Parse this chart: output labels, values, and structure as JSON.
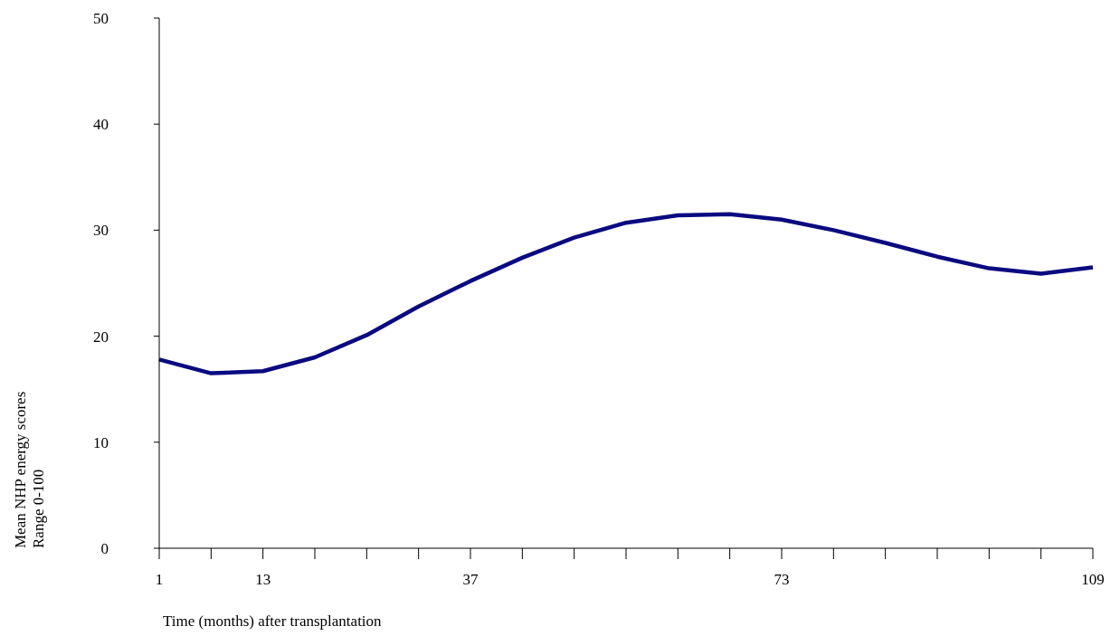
{
  "chart_data": {
    "type": "line",
    "xlabel": "Time (months) after transplantation",
    "ylabel": "Mean NHP energy scores\nRange 0-100",
    "x": [
      1,
      7,
      13,
      19,
      25,
      31,
      37,
      43,
      49,
      55,
      61,
      67,
      73,
      79,
      85,
      91,
      97,
      103,
      109
    ],
    "series": [
      {
        "color": "#0a0a80",
        "values": [
          17.8,
          16.5,
          16.7,
          18.0,
          20.1,
          22.8,
          25.2,
          27.4,
          29.3,
          30.7,
          31.4,
          31.5,
          31.0,
          30.0,
          28.8,
          27.5,
          26.4,
          25.9,
          26.5
        ]
      }
    ],
    "xlim": [
      1,
      109
    ],
    "xticks": [
      1,
      {
        "value": 7,
        "label": null
      },
      13,
      {
        "value": 19,
        "label": null
      },
      {
        "value": 25,
        "label": null
      },
      {
        "value": 31,
        "label": null
      },
      37,
      {
        "value": 43,
        "label": null
      },
      {
        "value": 49,
        "label": null
      },
      {
        "value": 55,
        "label": null
      },
      {
        "value": 61,
        "label": null
      },
      {
        "value": 67,
        "label": null
      },
      73,
      {
        "value": 79,
        "label": null
      },
      {
        "value": 85,
        "label": null
      },
      {
        "value": 91,
        "label": null
      },
      {
        "value": 97,
        "label": null
      },
      {
        "value": 103,
        "label": null
      },
      109
    ],
    "ylim": [
      0,
      50
    ],
    "yticks": [
      0,
      10,
      20,
      30,
      40,
      50
    ],
    "grid": false,
    "legend": false,
    "marker": "none",
    "line_style": "solid"
  }
}
